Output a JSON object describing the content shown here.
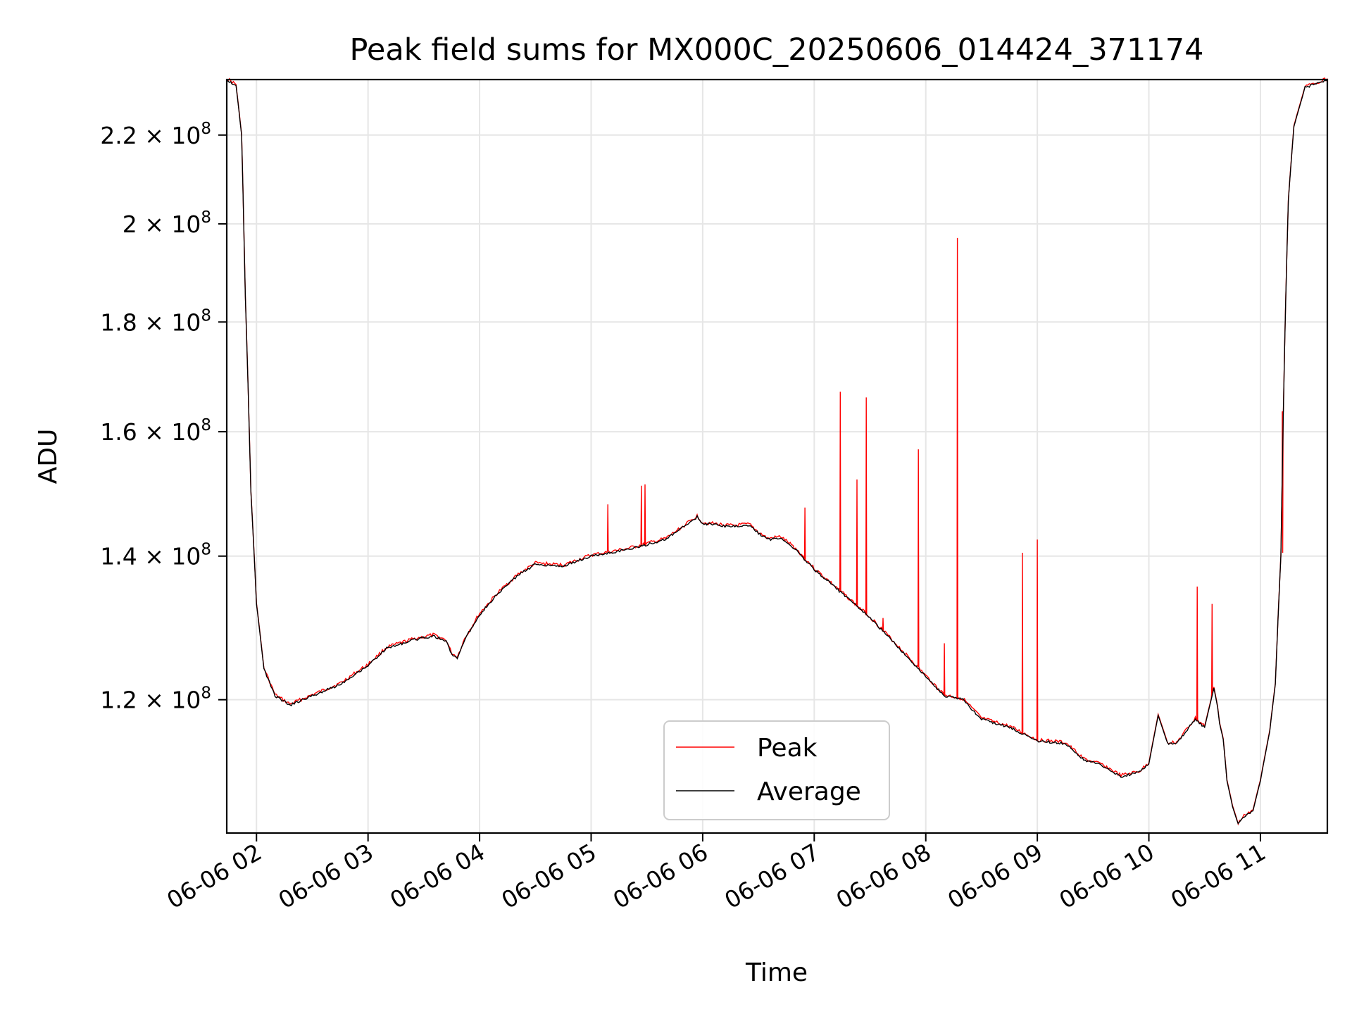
{
  "chart_data": {
    "type": "line",
    "title": "Peak field sums for MX000C_20250606_014424_371174",
    "xlabel": "Time",
    "ylabel": "ADU",
    "yscale": "log",
    "grid": true,
    "legend_position": "lower-center",
    "xlim": [
      "2025-06-06 01:44",
      "2025-06-06 11:36"
    ],
    "ylim": [
      104000000,
      233500000
    ],
    "x_ticks": [
      {
        "value": "2025-06-06 02:00",
        "label": "06-06 02"
      },
      {
        "value": "2025-06-06 03:00",
        "label": "06-06 03"
      },
      {
        "value": "2025-06-06 04:00",
        "label": "06-06 04"
      },
      {
        "value": "2025-06-06 05:00",
        "label": "06-06 05"
      },
      {
        "value": "2025-06-06 06:00",
        "label": "06-06 06"
      },
      {
        "value": "2025-06-06 07:00",
        "label": "06-06 07"
      },
      {
        "value": "2025-06-06 08:00",
        "label": "06-06 08"
      },
      {
        "value": "2025-06-06 09:00",
        "label": "06-06 09"
      },
      {
        "value": "2025-06-06 10:00",
        "label": "06-06 10"
      },
      {
        "value": "2025-06-06 11:00",
        "label": "06-06 11"
      }
    ],
    "y_ticks": [
      {
        "value": 120000000,
        "mantissa": "1.2",
        "base": "10",
        "exponent": "8"
      },
      {
        "value": 140000000,
        "mantissa": "1.4",
        "base": "10",
        "exponent": "8"
      },
      {
        "value": 160000000,
        "mantissa": "1.6",
        "base": "10",
        "exponent": "8"
      },
      {
        "value": 180000000,
        "mantissa": "1.8",
        "base": "10",
        "exponent": "8"
      },
      {
        "value": 200000000,
        "mantissa": "2",
        "base": "10",
        "exponent": "8"
      },
      {
        "value": 220000000,
        "mantissa": "2.2",
        "base": "10",
        "exponent": "8"
      }
    ],
    "series": [
      {
        "name": "Average",
        "color": "#000000",
        "points": [
          [
            "2025-06-06 01:44",
            233500000
          ],
          [
            "2025-06-06 01:49",
            232000000
          ],
          [
            "2025-06-06 01:52",
            220000000
          ],
          [
            "2025-06-06 01:54",
            185000000
          ],
          [
            "2025-06-06 01:57",
            150000000
          ],
          [
            "2025-06-06 02:00",
            133000000
          ],
          [
            "2025-06-06 02:04",
            124000000
          ],
          [
            "2025-06-06 02:10",
            120500000
          ],
          [
            "2025-06-06 02:18",
            119300000
          ],
          [
            "2025-06-06 02:30",
            120500000
          ],
          [
            "2025-06-06 02:45",
            122000000
          ],
          [
            "2025-06-06 03:00",
            124500000
          ],
          [
            "2025-06-06 03:10",
            126800000
          ],
          [
            "2025-06-06 03:25",
            128000000
          ],
          [
            "2025-06-06 03:35",
            128500000
          ],
          [
            "2025-06-06 03:42",
            127800000
          ],
          [
            "2025-06-06 03:45",
            126000000
          ],
          [
            "2025-06-06 03:48",
            125500000
          ],
          [
            "2025-06-06 03:52",
            128000000
          ],
          [
            "2025-06-06 04:00",
            131500000
          ],
          [
            "2025-06-06 04:10",
            134500000
          ],
          [
            "2025-06-06 04:20",
            137000000
          ],
          [
            "2025-06-06 04:30",
            138800000
          ],
          [
            "2025-06-06 04:45",
            138500000
          ],
          [
            "2025-06-06 05:00",
            140000000
          ],
          [
            "2025-06-06 05:20",
            141000000
          ],
          [
            "2025-06-06 05:40",
            142500000
          ],
          [
            "2025-06-06 05:50",
            144500000
          ],
          [
            "2025-06-06 05:57",
            146000000
          ],
          [
            "2025-06-06 06:00",
            145000000
          ],
          [
            "2025-06-06 06:15",
            144500000
          ],
          [
            "2025-06-06 06:25",
            144700000
          ],
          [
            "2025-06-06 06:30",
            143500000
          ],
          [
            "2025-06-06 06:35",
            142500000
          ],
          [
            "2025-06-06 06:42",
            142800000
          ],
          [
            "2025-06-06 06:50",
            141000000
          ],
          [
            "2025-06-06 07:00",
            138000000
          ],
          [
            "2025-06-06 07:15",
            134500000
          ],
          [
            "2025-06-06 07:30",
            131000000
          ],
          [
            "2025-06-06 07:45",
            127000000
          ],
          [
            "2025-06-06 08:00",
            123000000
          ],
          [
            "2025-06-06 08:10",
            120500000
          ],
          [
            "2025-06-06 08:20",
            120000000
          ],
          [
            "2025-06-06 08:30",
            117500000
          ],
          [
            "2025-06-06 08:45",
            116500000
          ],
          [
            "2025-06-06 09:00",
            114800000
          ],
          [
            "2025-06-06 09:15",
            114500000
          ],
          [
            "2025-06-06 09:25",
            112500000
          ],
          [
            "2025-06-06 09:35",
            111800000
          ],
          [
            "2025-06-06 09:45",
            110500000
          ],
          [
            "2025-06-06 09:55",
            111000000
          ],
          [
            "2025-06-06 10:00",
            112000000
          ],
          [
            "2025-06-06 10:05",
            118000000
          ],
          [
            "2025-06-06 10:10",
            114500000
          ],
          [
            "2025-06-06 10:15",
            114500000
          ],
          [
            "2025-06-06 10:20",
            116000000
          ],
          [
            "2025-06-06 10:25",
            117500000
          ],
          [
            "2025-06-06 10:30",
            116500000
          ],
          [
            "2025-06-06 10:35",
            121500000
          ],
          [
            "2025-06-06 10:37",
            119000000
          ],
          [
            "2025-06-06 10:38",
            117000000
          ],
          [
            "2025-06-06 10:40",
            115000000
          ],
          [
            "2025-06-06 10:42",
            110000000
          ],
          [
            "2025-06-06 10:45",
            107000000
          ],
          [
            "2025-06-06 10:48",
            105000000
          ],
          [
            "2025-06-06 10:52",
            106000000
          ],
          [
            "2025-06-06 10:56",
            106500000
          ],
          [
            "2025-06-06 11:00",
            110000000
          ],
          [
            "2025-06-06 11:05",
            116000000
          ],
          [
            "2025-06-06 11:08",
            122000000
          ],
          [
            "2025-06-06 11:11",
            140000000
          ],
          [
            "2025-06-06 11:13",
            175000000
          ],
          [
            "2025-06-06 11:15",
            205000000
          ],
          [
            "2025-06-06 11:18",
            222000000
          ],
          [
            "2025-06-06 11:24",
            231500000
          ],
          [
            "2025-06-06 11:36",
            233500000
          ]
        ]
      },
      {
        "name": "Peak",
        "color": "#ff0000",
        "spikes": [
          [
            "2025-06-06 05:09",
            148000000
          ],
          [
            "2025-06-06 05:27",
            151000000
          ],
          [
            "2025-06-06 05:29",
            151200000
          ],
          [
            "2025-06-06 06:55",
            147500000
          ],
          [
            "2025-06-06 07:14",
            167000000
          ],
          [
            "2025-06-06 07:23",
            152000000
          ],
          [
            "2025-06-06 07:28",
            166000000
          ],
          [
            "2025-06-06 07:37",
            131000000
          ],
          [
            "2025-06-06 07:56",
            157000000
          ],
          [
            "2025-06-06 08:10",
            127500000
          ],
          [
            "2025-06-06 08:17",
            197000000
          ],
          [
            "2025-06-06 08:52",
            140500000
          ],
          [
            "2025-06-06 09:00",
            142500000
          ],
          [
            "2025-06-06 10:26",
            135500000
          ],
          [
            "2025-06-06 10:34",
            133000000
          ],
          [
            "2025-06-06 11:12",
            140500000
          ]
        ]
      }
    ]
  }
}
